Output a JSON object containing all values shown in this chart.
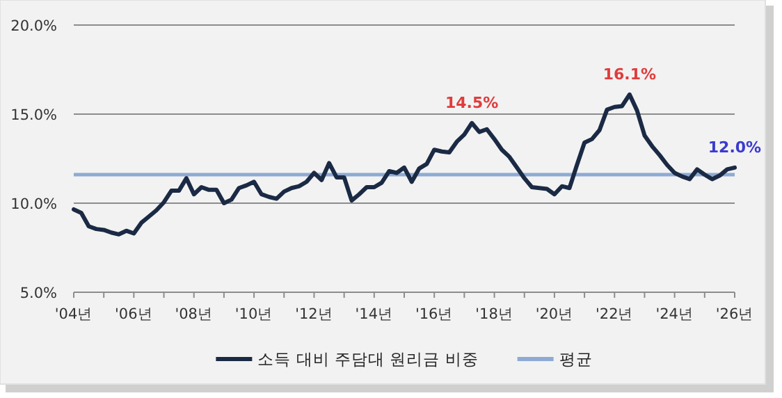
{
  "chart_data": {
    "type": "line",
    "categories": [
      "'04년",
      null,
      null,
      null,
      null,
      null,
      null,
      null,
      "'06년",
      null,
      null,
      null,
      null,
      null,
      null,
      null,
      "'08년",
      null,
      null,
      null,
      null,
      null,
      null,
      null,
      "'10년",
      null,
      null,
      null,
      null,
      null,
      null,
      null,
      "'12년",
      null,
      null,
      null,
      null,
      null,
      null,
      null,
      "'14년",
      null,
      null,
      null,
      null,
      null,
      null,
      null,
      "'16년",
      null,
      null,
      null,
      null,
      null,
      null,
      null,
      "'18년",
      null,
      null,
      null,
      null,
      null,
      null,
      null,
      "'20년",
      null,
      null,
      null,
      null,
      null,
      null,
      null,
      "'22년",
      null,
      null,
      null,
      null,
      null,
      null,
      null,
      "'24년",
      null,
      null,
      null,
      null,
      null,
      null,
      null,
      "'26년"
    ],
    "ylim": [
      5,
      20
    ],
    "yticks": [
      {
        "value": 5,
        "label": "5.0%"
      },
      {
        "value": 10,
        "label": "10.0%"
      },
      {
        "value": 15,
        "label": "15.0%"
      },
      {
        "value": 20,
        "label": "20.0%"
      }
    ],
    "grid": "y",
    "legend": "bottom",
    "line_style": "solid",
    "series": [
      {
        "name": "소득 대비 주담대 원리금 비중",
        "color": "#1b2a44",
        "values": [
          9.65,
          9.45,
          8.7,
          8.55,
          8.5,
          8.35,
          8.25,
          8.45,
          8.3,
          8.9,
          9.25,
          9.6,
          10.05,
          10.7,
          10.7,
          11.4,
          10.5,
          10.9,
          10.75,
          10.75,
          10.0,
          10.2,
          10.85,
          11.0,
          11.2,
          10.5,
          10.35,
          10.25,
          10.65,
          10.85,
          10.95,
          11.2,
          11.7,
          11.3,
          12.25,
          11.45,
          11.45,
          10.15,
          10.5,
          10.9,
          10.9,
          11.15,
          11.8,
          11.7,
          12.0,
          11.2,
          11.95,
          12.2,
          13.0,
          12.9,
          12.85,
          13.45,
          13.85,
          14.5,
          14.0,
          14.15,
          13.6,
          13.0,
          12.6,
          12.0,
          11.4,
          10.9,
          10.85,
          10.8,
          10.5,
          10.95,
          10.85,
          12.15,
          13.4,
          13.6,
          14.1,
          15.25,
          15.4,
          15.45,
          16.1,
          15.2,
          13.8,
          13.2,
          12.7,
          12.15,
          11.7,
          11.5,
          11.35,
          11.9,
          11.6,
          11.35,
          11.55,
          11.9,
          12.0
        ]
      }
    ],
    "ref_lines": [
      {
        "axis": "y",
        "value": 11.6,
        "label": "평균",
        "color": "#8eaad4",
        "line_style": "solid"
      }
    ],
    "annotations": [
      {
        "text": "14.5%",
        "y": 14.5
      },
      {
        "text": "16.1%",
        "y": 16.1
      },
      {
        "text": "12.0%",
        "y": 12.0
      }
    ]
  }
}
